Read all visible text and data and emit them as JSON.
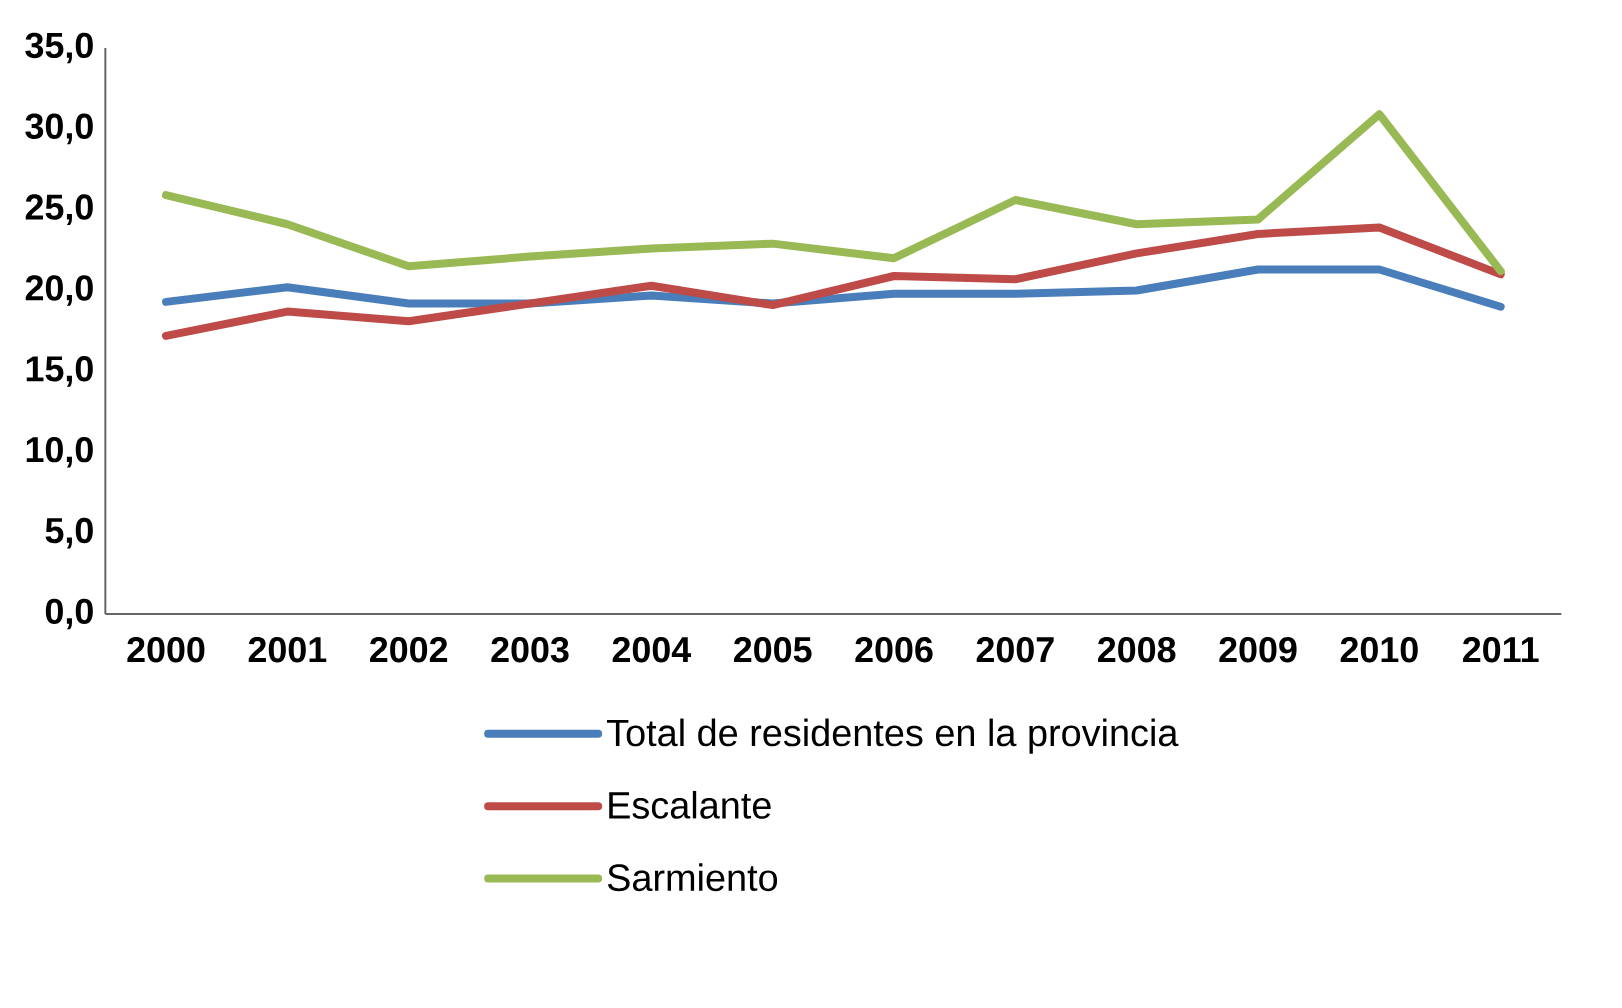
{
  "chart_data": {
    "type": "line",
    "categories": [
      "2000",
      "2001",
      "2002",
      "2003",
      "2004",
      "2005",
      "2006",
      "2007",
      "2008",
      "2009",
      "2010",
      "2011"
    ],
    "series": [
      {
        "name": "Total de residentes en la provincia",
        "color": "#4a7ebb",
        "values": [
          19.3,
          20.2,
          19.2,
          19.2,
          19.7,
          19.2,
          19.8,
          19.8,
          20.0,
          21.3,
          21.3,
          19.0
        ]
      },
      {
        "name": "Escalante",
        "color": "#be4b48",
        "values": [
          17.2,
          18.7,
          18.1,
          19.2,
          20.3,
          19.1,
          20.9,
          20.7,
          22.3,
          23.5,
          23.9,
          21.0
        ]
      },
      {
        "name": "Sarmiento",
        "color": "#98b954",
        "values": [
          25.9,
          24.1,
          21.5,
          22.1,
          22.6,
          22.9,
          22.0,
          25.6,
          24.1,
          24.4,
          30.9,
          21.2
        ]
      }
    ],
    "ylim": [
      0,
      35
    ],
    "yticks": [
      {
        "value": 0,
        "label": "0,0"
      },
      {
        "value": 5,
        "label": "5,0"
      },
      {
        "value": 10,
        "label": "10,0"
      },
      {
        "value": 15,
        "label": "15,0"
      },
      {
        "value": 20,
        "label": "20,0"
      },
      {
        "value": 25,
        "label": "25,0"
      },
      {
        "value": 30,
        "label": "30,0"
      },
      {
        "value": 35,
        "label": "35,0"
      }
    ],
    "grid": false,
    "legend": "bottom",
    "marker": "none",
    "line_style": "solid"
  }
}
